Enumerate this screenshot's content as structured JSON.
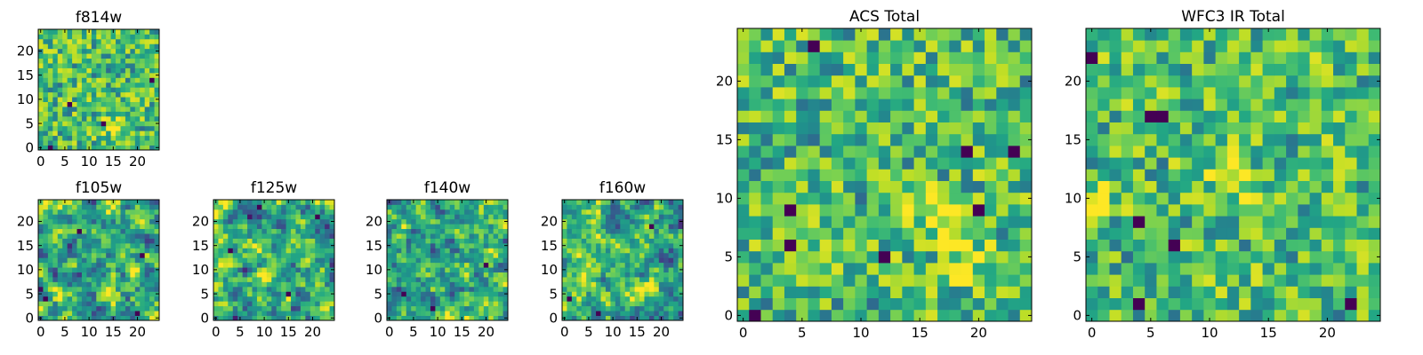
{
  "chart_data": [
    {
      "type": "heatmap",
      "title": "f814w",
      "grid_size": 25,
      "xticks": [
        0,
        5,
        10,
        15,
        20
      ],
      "yticks": [
        0,
        5,
        10,
        15,
        20
      ],
      "xlim": [
        -0.5,
        24.5
      ],
      "ylim": [
        -0.5,
        24.5
      ],
      "colormap": "viridis",
      "seed": 11,
      "smooth": 0,
      "bright_spots": [
        [
          15,
          4
        ]
      ],
      "dark_spots": [
        [
          2,
          0
        ],
        [
          13,
          5
        ],
        [
          6,
          9
        ],
        [
          23,
          14
        ]
      ]
    },
    {
      "type": "heatmap",
      "title": "f105w",
      "grid_size": 25,
      "xticks": [
        0,
        5,
        10,
        15,
        20
      ],
      "yticks": [
        0,
        5,
        10,
        15,
        20
      ],
      "xlim": [
        -0.5,
        24.5
      ],
      "ylim": [
        -0.5,
        24.5
      ],
      "colormap": "viridis",
      "seed": 23,
      "smooth": 1,
      "bright_spots": [
        [
          14,
          6
        ]
      ],
      "dark_spots": [
        [
          8,
          18
        ],
        [
          1,
          4
        ],
        [
          21,
          13
        ],
        [
          20,
          1
        ]
      ]
    },
    {
      "type": "heatmap",
      "title": "f125w",
      "grid_size": 25,
      "xticks": [
        0,
        5,
        10,
        15,
        20
      ],
      "yticks": [
        0,
        5,
        10,
        15,
        20
      ],
      "xlim": [
        -0.5,
        24.5
      ],
      "ylim": [
        -0.5,
        24.5
      ],
      "colormap": "viridis",
      "seed": 37,
      "smooth": 1,
      "bright_spots": [
        [
          12,
          8
        ]
      ],
      "dark_spots": [
        [
          3,
          14
        ],
        [
          15,
          5
        ],
        [
          9,
          23
        ],
        [
          21,
          21
        ]
      ]
    },
    {
      "type": "heatmap",
      "title": "f140w",
      "grid_size": 25,
      "xticks": [
        0,
        5,
        10,
        15,
        20
      ],
      "yticks": [
        0,
        5,
        10,
        15,
        20
      ],
      "xlim": [
        -0.5,
        24.5
      ],
      "ylim": [
        -0.5,
        24.5
      ],
      "colormap": "viridis",
      "seed": 41,
      "smooth": 1,
      "bright_spots": [
        [
          15,
          9
        ]
      ],
      "dark_spots": [
        [
          20,
          11
        ],
        [
          3,
          5
        ],
        [
          9,
          2
        ]
      ]
    },
    {
      "type": "heatmap",
      "title": "f160w",
      "grid_size": 25,
      "xticks": [
        0,
        5,
        10,
        15,
        20
      ],
      "yticks": [
        0,
        5,
        10,
        15,
        20
      ],
      "xlim": [
        -0.5,
        24.5
      ],
      "ylim": [
        -0.5,
        24.5
      ],
      "colormap": "viridis",
      "seed": 53,
      "smooth": 1,
      "bright_spots": [
        [
          14,
          6
        ]
      ],
      "dark_spots": [
        [
          1,
          4
        ],
        [
          7,
          1
        ],
        [
          18,
          19
        ]
      ]
    },
    {
      "type": "heatmap",
      "title": "ACS Total",
      "grid_size": 25,
      "xticks": [
        0,
        5,
        10,
        15,
        20
      ],
      "yticks": [
        0,
        5,
        10,
        15,
        20
      ],
      "xlim": [
        -0.5,
        24.5
      ],
      "ylim": [
        -0.5,
        24.5
      ],
      "colormap": "viridis",
      "seed": 67,
      "smooth": 0,
      "bright_spots": [
        [
          16,
          9
        ],
        [
          19,
          5
        ]
      ],
      "dark_spots": [
        [
          6,
          23
        ],
        [
          1,
          0
        ],
        [
          4,
          9
        ],
        [
          19,
          14
        ],
        [
          20,
          9
        ],
        [
          12,
          5
        ],
        [
          23,
          14
        ],
        [
          4,
          6
        ]
      ]
    },
    {
      "type": "heatmap",
      "title": "WFC3 IR Total",
      "grid_size": 25,
      "xticks": [
        0,
        5,
        10,
        15,
        20
      ],
      "yticks": [
        0,
        5,
        10,
        15,
        20
      ],
      "xlim": [
        -0.5,
        24.5
      ],
      "ylim": [
        -0.5,
        24.5
      ],
      "colormap": "viridis",
      "seed": 79,
      "smooth": 0,
      "bright_spots": [
        [
          12,
          12
        ],
        [
          0,
          10
        ]
      ],
      "dark_spots": [
        [
          6,
          17
        ],
        [
          5,
          17
        ],
        [
          0,
          22
        ],
        [
          4,
          8
        ],
        [
          4,
          1
        ],
        [
          22,
          1
        ],
        [
          7,
          6
        ]
      ]
    }
  ]
}
